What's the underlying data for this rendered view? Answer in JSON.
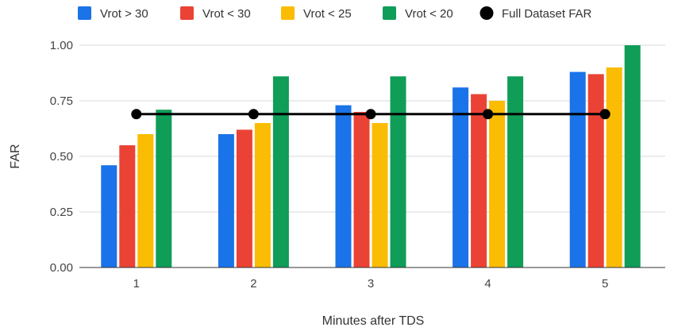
{
  "chart_data": {
    "type": "bar",
    "title": "",
    "xlabel": "Minutes after TDS",
    "ylabel": "FAR",
    "categories": [
      "1",
      "2",
      "3",
      "4",
      "5"
    ],
    "ylim": [
      0,
      1
    ],
    "yticks": [
      "0.00",
      "0.25",
      "0.50",
      "0.75",
      "1.00"
    ],
    "grid": true,
    "legend_position": "top",
    "series": [
      {
        "name": "Vrot > 30",
        "color": "#1a73e8",
        "values": [
          0.46,
          0.6,
          0.73,
          0.81,
          0.88
        ]
      },
      {
        "name": "Vrot < 30",
        "color": "#ea4335",
        "values": [
          0.55,
          0.62,
          0.7,
          0.78,
          0.87
        ]
      },
      {
        "name": "Vrot < 25",
        "color": "#fbbc04",
        "values": [
          0.6,
          0.65,
          0.65,
          0.75,
          0.9
        ]
      },
      {
        "name": "Vrot < 20",
        "color": "#0f9d58",
        "values": [
          0.71,
          0.86,
          0.86,
          0.86,
          1.0
        ]
      }
    ],
    "line_series": {
      "name": "Full Dataset FAR",
      "color": "#000000",
      "values": [
        0.69,
        0.69,
        0.69,
        0.69,
        0.69
      ]
    }
  }
}
